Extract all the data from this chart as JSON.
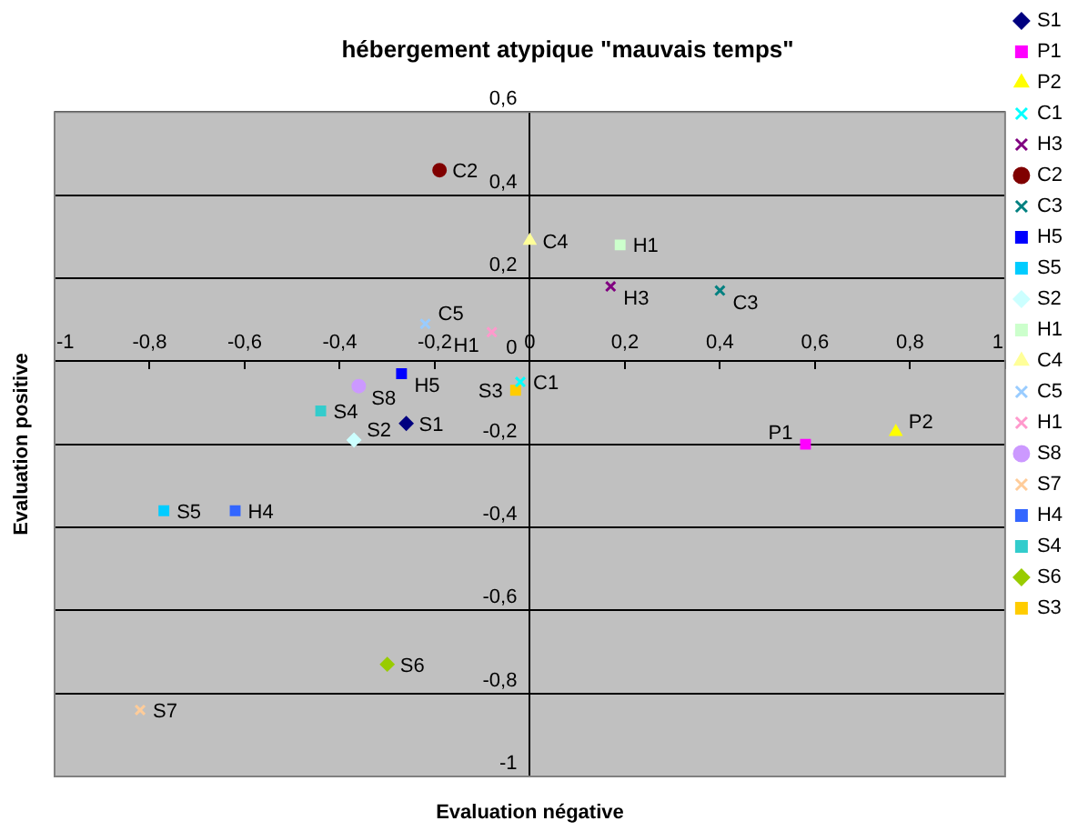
{
  "chart_data": {
    "type": "scatter",
    "title": "hébergement atypique \"mauvais temps\"",
    "xlabel": "Evaluation négative",
    "ylabel": "Evaluation positive",
    "xlim": [
      -1,
      1
    ],
    "ylim": [
      -1,
      0.6
    ],
    "xticks": [
      {
        "value": -1,
        "label": "-1"
      },
      {
        "value": -0.8,
        "label": "-0,8"
      },
      {
        "value": -0.6,
        "label": "-0,6"
      },
      {
        "value": -0.4,
        "label": "-0,4"
      },
      {
        "value": -0.2,
        "label": "-0,2"
      },
      {
        "value": 0,
        "label": "0"
      },
      {
        "value": 0.2,
        "label": "0,2"
      },
      {
        "value": 0.4,
        "label": "0,4"
      },
      {
        "value": 0.6,
        "label": "0,6"
      },
      {
        "value": 0.8,
        "label": "0,8"
      },
      {
        "value": 1,
        "label": "1"
      }
    ],
    "yticks": [
      {
        "value": -1,
        "label": "-1"
      },
      {
        "value": -0.8,
        "label": "-0,8"
      },
      {
        "value": -0.6,
        "label": "-0,6"
      },
      {
        "value": -0.4,
        "label": "-0,4"
      },
      {
        "value": -0.2,
        "label": "-0,2"
      },
      {
        "value": 0,
        "label": "0"
      },
      {
        "value": 0.2,
        "label": "0,2"
      },
      {
        "value": 0.4,
        "label": "0,4"
      },
      {
        "value": 0.6,
        "label": "0,6"
      }
    ],
    "grid": "y",
    "legend": "right",
    "series": [
      {
        "name": "S1",
        "color": "#000080",
        "marker": "diamond",
        "x": [
          -0.26
        ],
        "values": [
          -0.15
        ]
      },
      {
        "name": "P1",
        "color": "#ff00ff",
        "marker": "square",
        "x": [
          0.58
        ],
        "values": [
          -0.2
        ]
      },
      {
        "name": "P2",
        "color": "#ffff00",
        "marker": "triangle",
        "x": [
          0.77
        ],
        "values": [
          -0.17
        ]
      },
      {
        "name": "C1",
        "color": "#00ffff",
        "marker": "cross",
        "x": [
          -0.02
        ],
        "values": [
          -0.05
        ]
      },
      {
        "name": "H3",
        "color": "#800080",
        "marker": "cross",
        "x": [
          0.17
        ],
        "values": [
          0.18
        ]
      },
      {
        "name": "C2",
        "color": "#800000",
        "marker": "circle",
        "x": [
          -0.19
        ],
        "values": [
          0.46
        ]
      },
      {
        "name": "C3",
        "color": "#008080",
        "marker": "cross",
        "x": [
          0.4
        ],
        "values": [
          0.17
        ]
      },
      {
        "name": "H5",
        "color": "#0000ff",
        "marker": "square",
        "x": [
          -0.27
        ],
        "values": [
          -0.03
        ]
      },
      {
        "name": "S5",
        "color": "#00ccff",
        "marker": "square",
        "x": [
          -0.77
        ],
        "values": [
          -0.36
        ]
      },
      {
        "name": "S2",
        "color": "#ccffff",
        "marker": "diamond",
        "x": [
          -0.37
        ],
        "values": [
          -0.19
        ]
      },
      {
        "name": "H1",
        "color": "#ccffcc",
        "marker": "square",
        "x": [
          0.19
        ],
        "values": [
          0.28
        ]
      },
      {
        "name": "C4",
        "color": "#ffff99",
        "marker": "triangle",
        "x": [
          0.0
        ],
        "values": [
          0.29
        ]
      },
      {
        "name": "C5",
        "color": "#99ccff",
        "marker": "cross",
        "x": [
          -0.22
        ],
        "values": [
          0.09
        ]
      },
      {
        "name": "H1",
        "color": "#ff99cc",
        "marker": "cross",
        "x": [
          -0.08
        ],
        "values": [
          0.07
        ]
      },
      {
        "name": "S8",
        "color": "#cc99ff",
        "marker": "circle",
        "x": [
          -0.36
        ],
        "values": [
          -0.06
        ]
      },
      {
        "name": "S7",
        "color": "#ffcc99",
        "marker": "cross",
        "x": [
          -0.82
        ],
        "values": [
          -0.84
        ]
      },
      {
        "name": "H4",
        "color": "#3366ff",
        "marker": "square",
        "x": [
          -0.62
        ],
        "values": [
          -0.36
        ]
      },
      {
        "name": "S4",
        "color": "#33cccc",
        "marker": "square",
        "x": [
          -0.44
        ],
        "values": [
          -0.12
        ]
      },
      {
        "name": "S6",
        "color": "#99cc00",
        "marker": "diamond",
        "x": [
          -0.3
        ],
        "values": [
          -0.73
        ]
      },
      {
        "name": "S3",
        "color": "#ffcc00",
        "marker": "square",
        "x": [
          -0.03
        ],
        "values": [
          -0.07
        ]
      }
    ]
  }
}
